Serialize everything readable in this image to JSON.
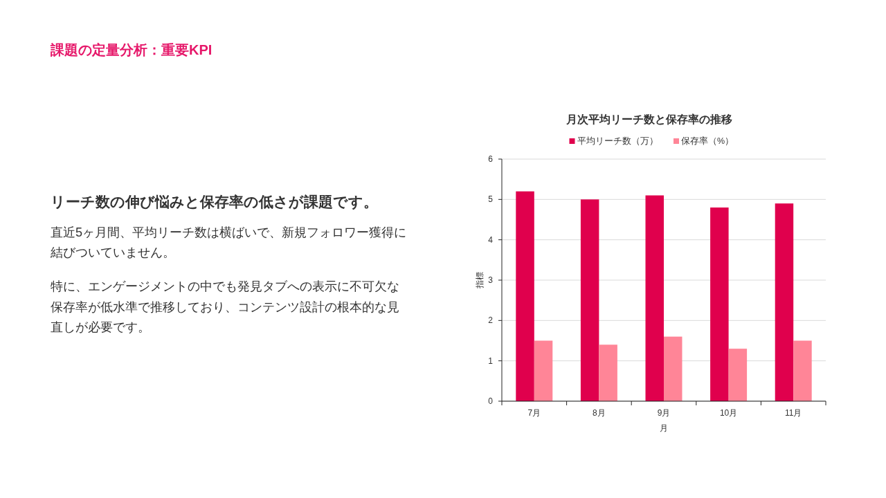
{
  "chart_data": {
    "type": "bar",
    "title": "月次平均リーチ数と保存率の推移",
    "xlabel": "月",
    "ylabel": "指標",
    "categories": [
      "7月",
      "8月",
      "9月",
      "10月",
      "11月"
    ],
    "series": [
      {
        "name": "平均リーチ数（万）",
        "color": "#e0004d",
        "values": [
          5.2,
          5.0,
          5.1,
          4.8,
          4.9
        ]
      },
      {
        "name": "保存率（%）",
        "color": "#ff8597",
        "values": [
          1.5,
          1.4,
          1.6,
          1.3,
          1.5
        ]
      }
    ],
    "ylim": [
      0,
      6
    ],
    "yticks": [
      0,
      1,
      2,
      3,
      4,
      5,
      6
    ],
    "grid": "y",
    "legend": "top",
    "annotations": [
      "課題の定量分析：重要KPI",
      "リーチ数の伸び悩みと保存率の低さが課題です。",
      "直近5ヶ月間、平均リーチ数は横ばいで、新規フォロワー獲得に結びついていません。",
      "特に、エンゲージメントの中でも発見タブへの表示に不可欠な保存率が低水準で推移しており、コンテンツ設計の根本的な見直しが必要です。"
    ]
  }
}
